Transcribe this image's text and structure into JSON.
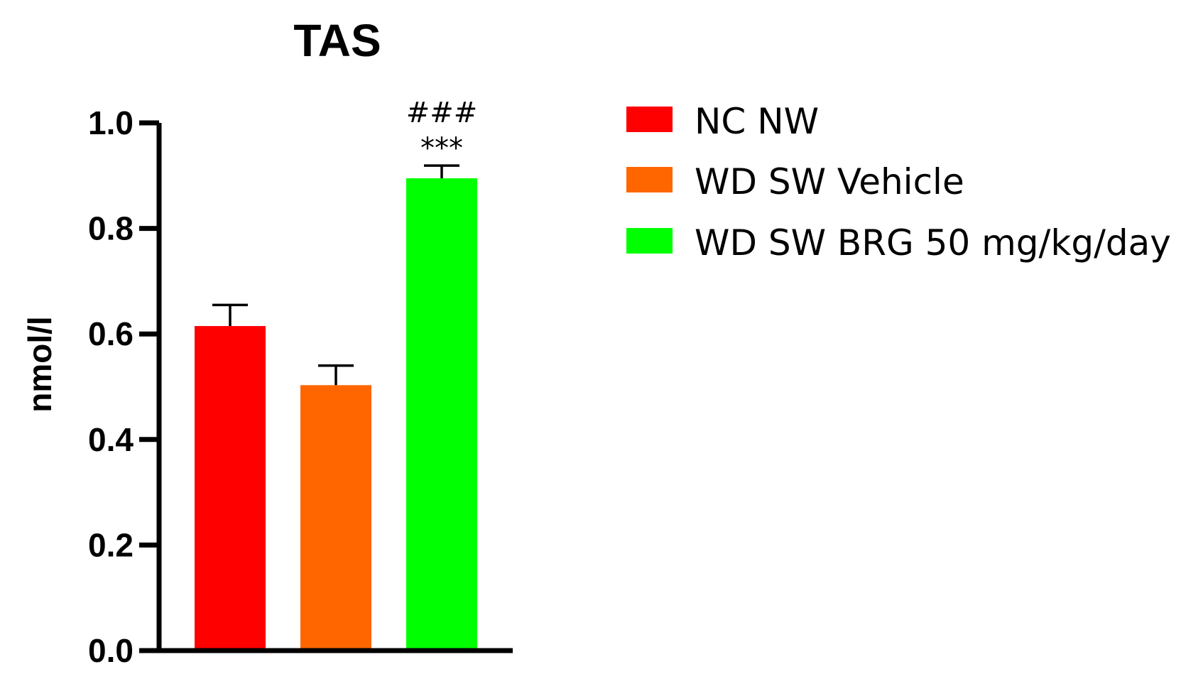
{
  "chart_data": {
    "type": "bar",
    "title": "TAS",
    "xlabel": "",
    "ylabel": "nmol/l",
    "ylim": [
      0,
      1.0
    ],
    "yticks": [
      "0.0",
      "0.2",
      "0.4",
      "0.6",
      "0.8",
      "1.0"
    ],
    "grid": false,
    "legend_position": "right",
    "categories": [
      "NC NW",
      "WD SW Vehicle",
      "WD SW BRG 50 mg/kg/day"
    ],
    "values": [
      0.615,
      0.503,
      0.895
    ],
    "errors": [
      0.04,
      0.037,
      0.024
    ],
    "colors": [
      "#ff0000",
      "#ff6600",
      "#00ff00"
    ],
    "annotations": [
      {
        "category": "WD SW BRG 50 mg/kg/day",
        "lines": [
          "###",
          "***"
        ]
      }
    ]
  }
}
